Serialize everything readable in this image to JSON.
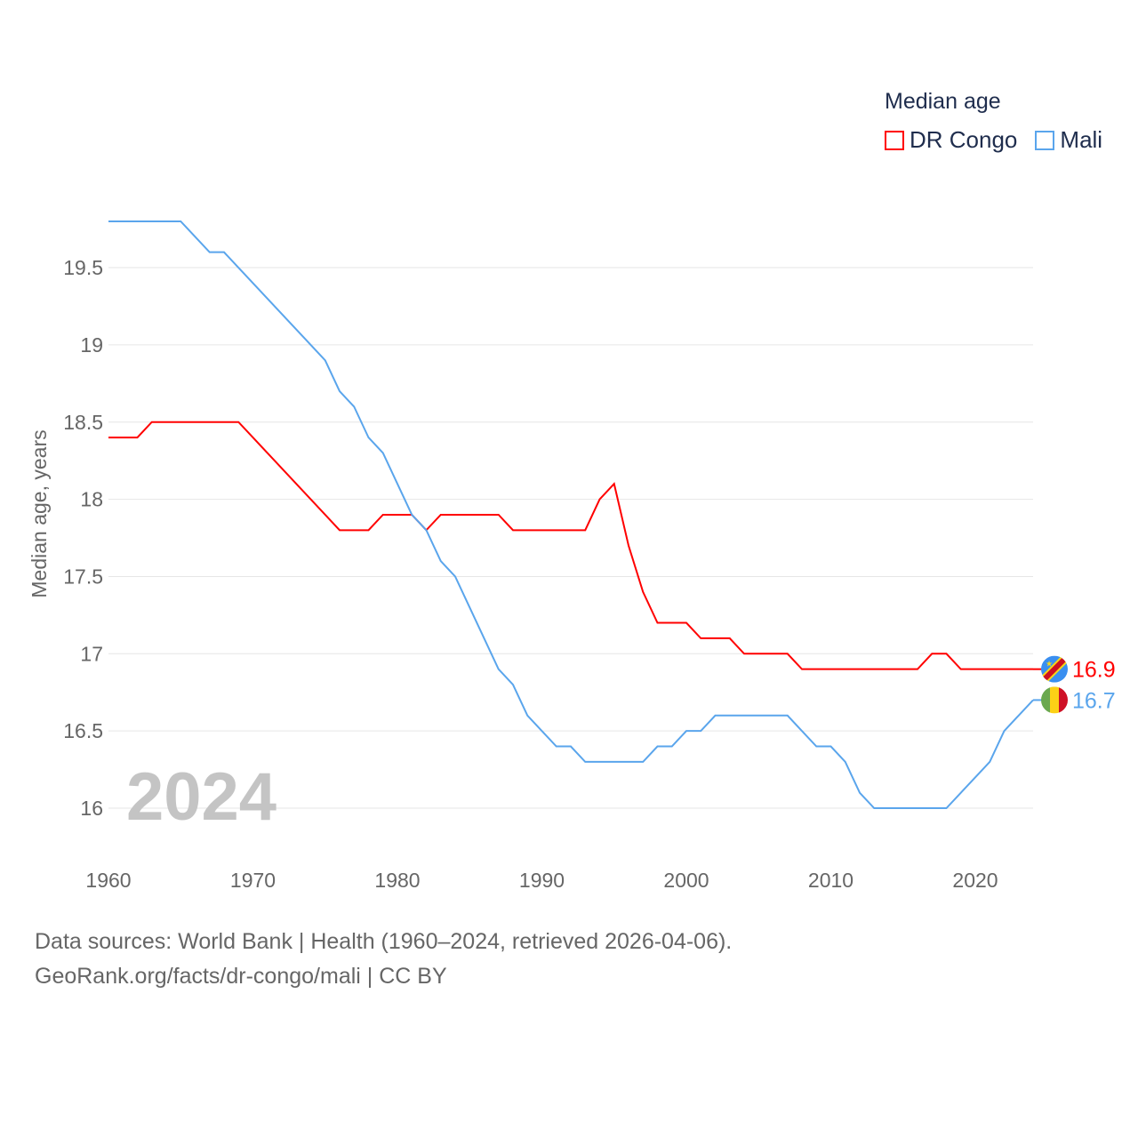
{
  "chart_data": {
    "type": "line",
    "title": "Median age",
    "ylabel": "Median age, years",
    "xlabel": "",
    "xlim": [
      1960,
      2024
    ],
    "ylim": [
      15.75,
      19.9
    ],
    "xticks": [
      1960,
      1970,
      1980,
      1990,
      2000,
      2010,
      2020
    ],
    "yticks": [
      16,
      16.5,
      17,
      17.5,
      18,
      18.5,
      19,
      19.5
    ],
    "ytick_labels": [
      "16",
      "16.5",
      "17",
      "17.5",
      "18",
      "18.5",
      "19",
      "19.5"
    ],
    "grid": true,
    "legend_placement": "top-right",
    "year_label": "2024",
    "x": [
      1960,
      1961,
      1962,
      1963,
      1964,
      1965,
      1966,
      1967,
      1968,
      1969,
      1970,
      1971,
      1972,
      1973,
      1974,
      1975,
      1976,
      1977,
      1978,
      1979,
      1980,
      1981,
      1982,
      1983,
      1984,
      1985,
      1986,
      1987,
      1988,
      1989,
      1990,
      1991,
      1992,
      1993,
      1994,
      1995,
      1996,
      1997,
      1998,
      1999,
      2000,
      2001,
      2002,
      2003,
      2004,
      2005,
      2006,
      2007,
      2008,
      2009,
      2010,
      2011,
      2012,
      2013,
      2014,
      2015,
      2016,
      2017,
      2018,
      2019,
      2020,
      2021,
      2022,
      2023,
      2024
    ],
    "series": [
      {
        "name": "DR Congo",
        "color": "#ff0000",
        "end_label": "16.9",
        "values": [
          18.4,
          18.4,
          18.4,
          18.5,
          18.5,
          18.5,
          18.5,
          18.5,
          18.5,
          18.5,
          18.4,
          18.3,
          18.2,
          18.1,
          18.0,
          17.9,
          17.8,
          17.8,
          17.8,
          17.9,
          17.9,
          17.9,
          17.8,
          17.9,
          17.9,
          17.9,
          17.9,
          17.9,
          17.8,
          17.8,
          17.8,
          17.8,
          17.8,
          17.8,
          18.0,
          18.1,
          17.7,
          17.4,
          17.2,
          17.2,
          17.2,
          17.1,
          17.1,
          17.1,
          17.0,
          17.0,
          17.0,
          17.0,
          16.9,
          16.9,
          16.9,
          16.9,
          16.9,
          16.9,
          16.9,
          16.9,
          16.9,
          17.0,
          17.0,
          16.9,
          16.9,
          16.9,
          16.9,
          16.9,
          16.9
        ]
      },
      {
        "name": "Mali",
        "color": "#5aa5ec",
        "end_label": "16.7",
        "values": [
          19.8,
          19.8,
          19.8,
          19.8,
          19.8,
          19.8,
          19.7,
          19.6,
          19.6,
          19.5,
          19.4,
          19.3,
          19.2,
          19.1,
          19.0,
          18.9,
          18.7,
          18.6,
          18.4,
          18.3,
          18.1,
          17.9,
          17.8,
          17.6,
          17.5,
          17.3,
          17.1,
          16.9,
          16.8,
          16.6,
          16.5,
          16.4,
          16.4,
          16.3,
          16.3,
          16.3,
          16.3,
          16.3,
          16.4,
          16.4,
          16.5,
          16.5,
          16.6,
          16.6,
          16.6,
          16.6,
          16.6,
          16.6,
          16.5,
          16.4,
          16.4,
          16.3,
          16.1,
          16.0,
          16.0,
          16.0,
          16.0,
          16.0,
          16.0,
          16.1,
          16.2,
          16.3,
          16.5,
          16.6,
          16.7
        ]
      }
    ]
  },
  "footer": {
    "line1": "Data sources: World Bank | Health (1960–2024, retrieved 2026-04-06).",
    "line2": "GeoRank.org/facts/dr-congo/mali | CC BY"
  }
}
